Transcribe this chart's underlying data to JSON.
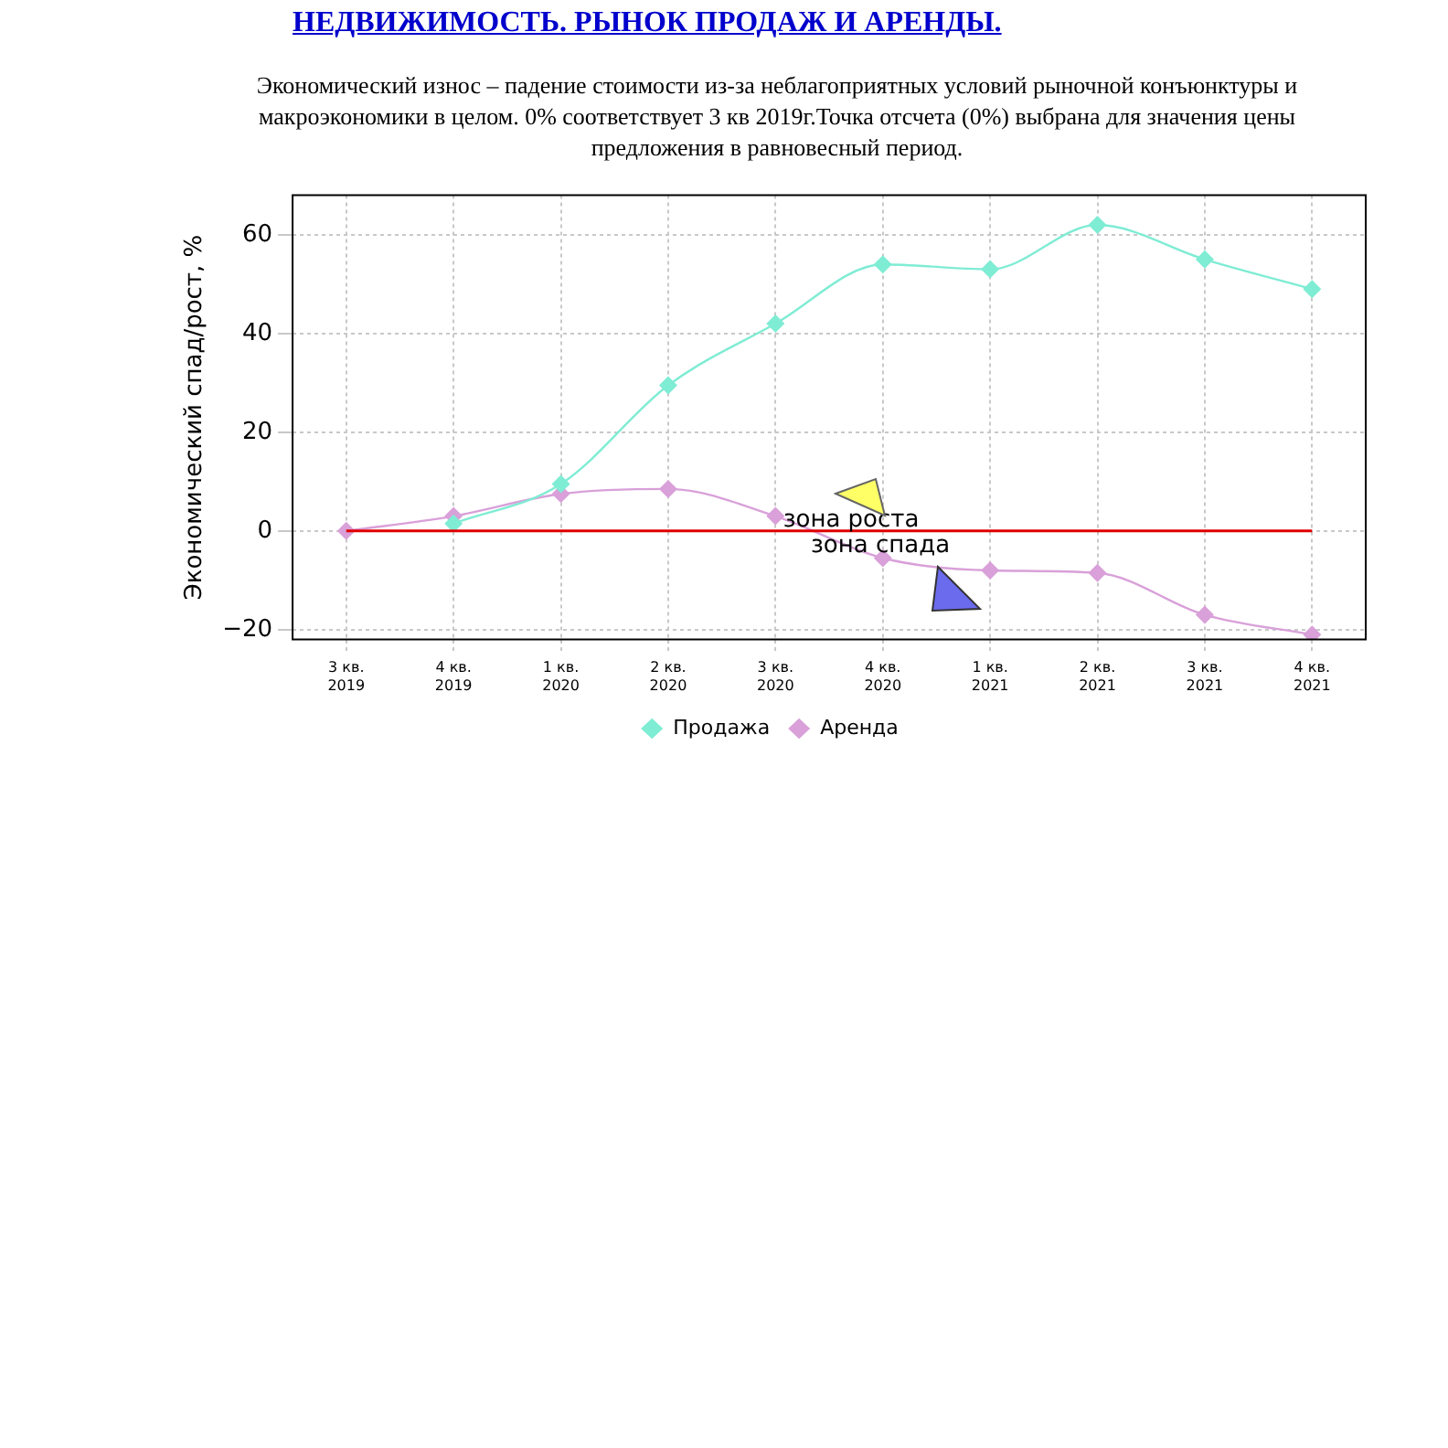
{
  "chart_data": {
    "type": "line",
    "title": "НЕДВИЖИМОСТЬ. РЫНОК ПРОДАЖ И АРЕНДЫ.",
    "subtitle": "Экономический износ – падение стоимости из-за неблагоприятных условий рыночной конъюнктуры и макроэкономики в целом. 0% соответствует 3 кв 2019г.Точка отсчета (0%) выбрана для значения цены предложения в равновесный период.",
    "ylabel": "Экономический спад/рост, %",
    "categories": [
      "3 кв. 2019",
      "4 кв. 2019",
      "1 кв. 2020",
      "2 кв. 2020",
      "3 кв. 2020",
      "4 кв. 2020",
      "1 кв. 2021",
      "2 кв. 2021",
      "3 кв. 2021",
      "4 кв. 2021"
    ],
    "series": [
      {
        "name": "Продажа",
        "color": "#7fecd4",
        "values": [
          null,
          1.5,
          9.5,
          29.5,
          42,
          54,
          53,
          62,
          55,
          49
        ]
      },
      {
        "name": "Аренда",
        "color": "#d9a0d9",
        "values": [
          0,
          3,
          7.5,
          8.5,
          3,
          -5.5,
          -8,
          -8.5,
          -17,
          -21
        ]
      }
    ],
    "ylim": [
      -22,
      68
    ],
    "yticks": [
      -20,
      0,
      20,
      40,
      60
    ],
    "ref_lines": [
      {
        "axis": "y",
        "value": 0,
        "color": "#e00000"
      }
    ],
    "annotations": [
      "зона роста",
      "зона спада"
    ],
    "grid": true,
    "legend": "bottom",
    "marker": "diamond",
    "line_style": "solid"
  }
}
